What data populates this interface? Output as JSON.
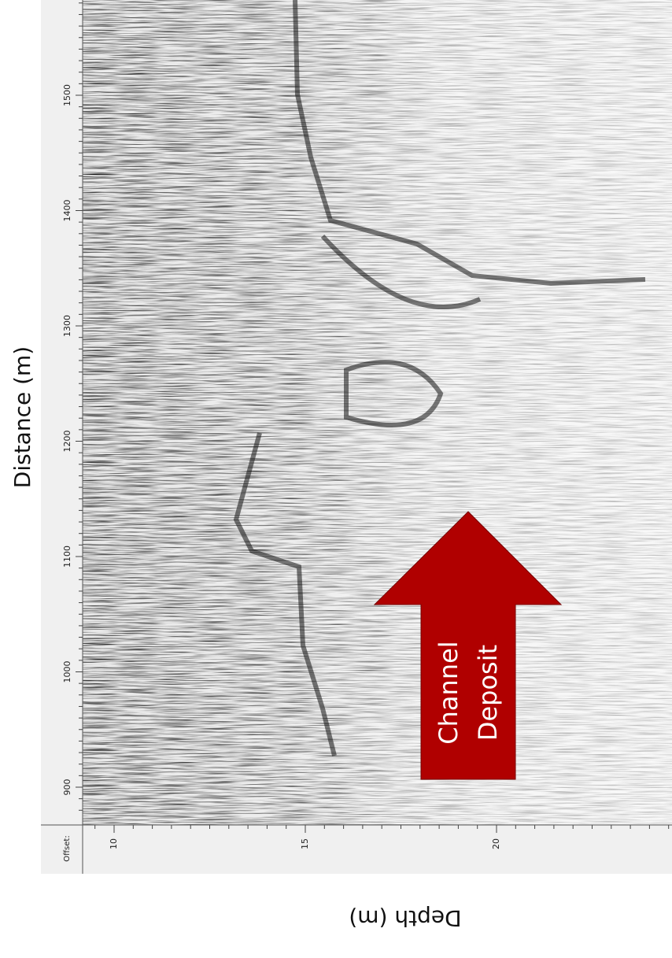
{
  "distance_axis": {
    "label": "Distance (m)",
    "ticks": [
      "900",
      "1000",
      "1100",
      "1200",
      "1300",
      "1400",
      "1500"
    ]
  },
  "depth_axis": {
    "label": "Depth (m)",
    "offset_label": "Offset:",
    "ticks": [
      "10",
      "15",
      "20"
    ]
  },
  "annotation": {
    "lines": [
      "Channel",
      "Deposit"
    ]
  }
}
